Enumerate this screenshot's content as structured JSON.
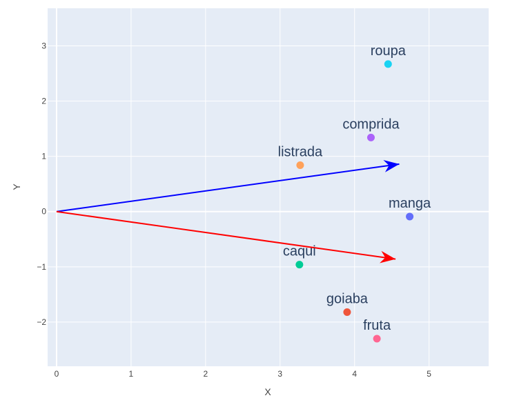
{
  "chart_data": {
    "type": "scatter",
    "xlabel": "X",
    "ylabel": "Y",
    "xlim": [
      -0.12,
      5.8
    ],
    "ylim": [
      -2.8,
      3.68
    ],
    "x_ticks": [
      {
        "value": 0,
        "label": "0"
      },
      {
        "value": 1,
        "label": "1"
      },
      {
        "value": 2,
        "label": "2"
      },
      {
        "value": 3,
        "label": "3"
      },
      {
        "value": 4,
        "label": "4"
      },
      {
        "value": 5,
        "label": "5"
      }
    ],
    "y_ticks": [
      {
        "value": -2,
        "label": "−2"
      },
      {
        "value": -1,
        "label": "−1"
      },
      {
        "value": 0,
        "label": "0"
      },
      {
        "value": 1,
        "label": "1"
      },
      {
        "value": 2,
        "label": "2"
      },
      {
        "value": 3,
        "label": "3"
      }
    ],
    "grid": true,
    "background_color": "#e5ecf6",
    "points": [
      {
        "label": "roupa",
        "x": 4.45,
        "y": 2.67,
        "color": "#19d3f3"
      },
      {
        "label": "comprida",
        "x": 4.22,
        "y": 1.34,
        "color": "#ab63fa"
      },
      {
        "label": "listrada",
        "x": 3.27,
        "y": 0.84,
        "color": "#ffa15a"
      },
      {
        "label": "manga",
        "x": 4.74,
        "y": -0.09,
        "color": "#636efa"
      },
      {
        "label": "caqui",
        "x": 3.26,
        "y": -0.96,
        "color": "#00cc96"
      },
      {
        "label": "goiaba",
        "x": 3.9,
        "y": -1.82,
        "color": "#ef553b"
      },
      {
        "label": "fruta",
        "x": 4.3,
        "y": -2.3,
        "color": "#ff6692"
      }
    ],
    "arrows": [
      {
        "from": [
          0,
          0
        ],
        "to": [
          4.6,
          0.86
        ],
        "color": "#0000ff"
      },
      {
        "from": [
          0,
          0
        ],
        "to": [
          4.55,
          -0.86
        ],
        "color": "#ff0000"
      }
    ]
  }
}
